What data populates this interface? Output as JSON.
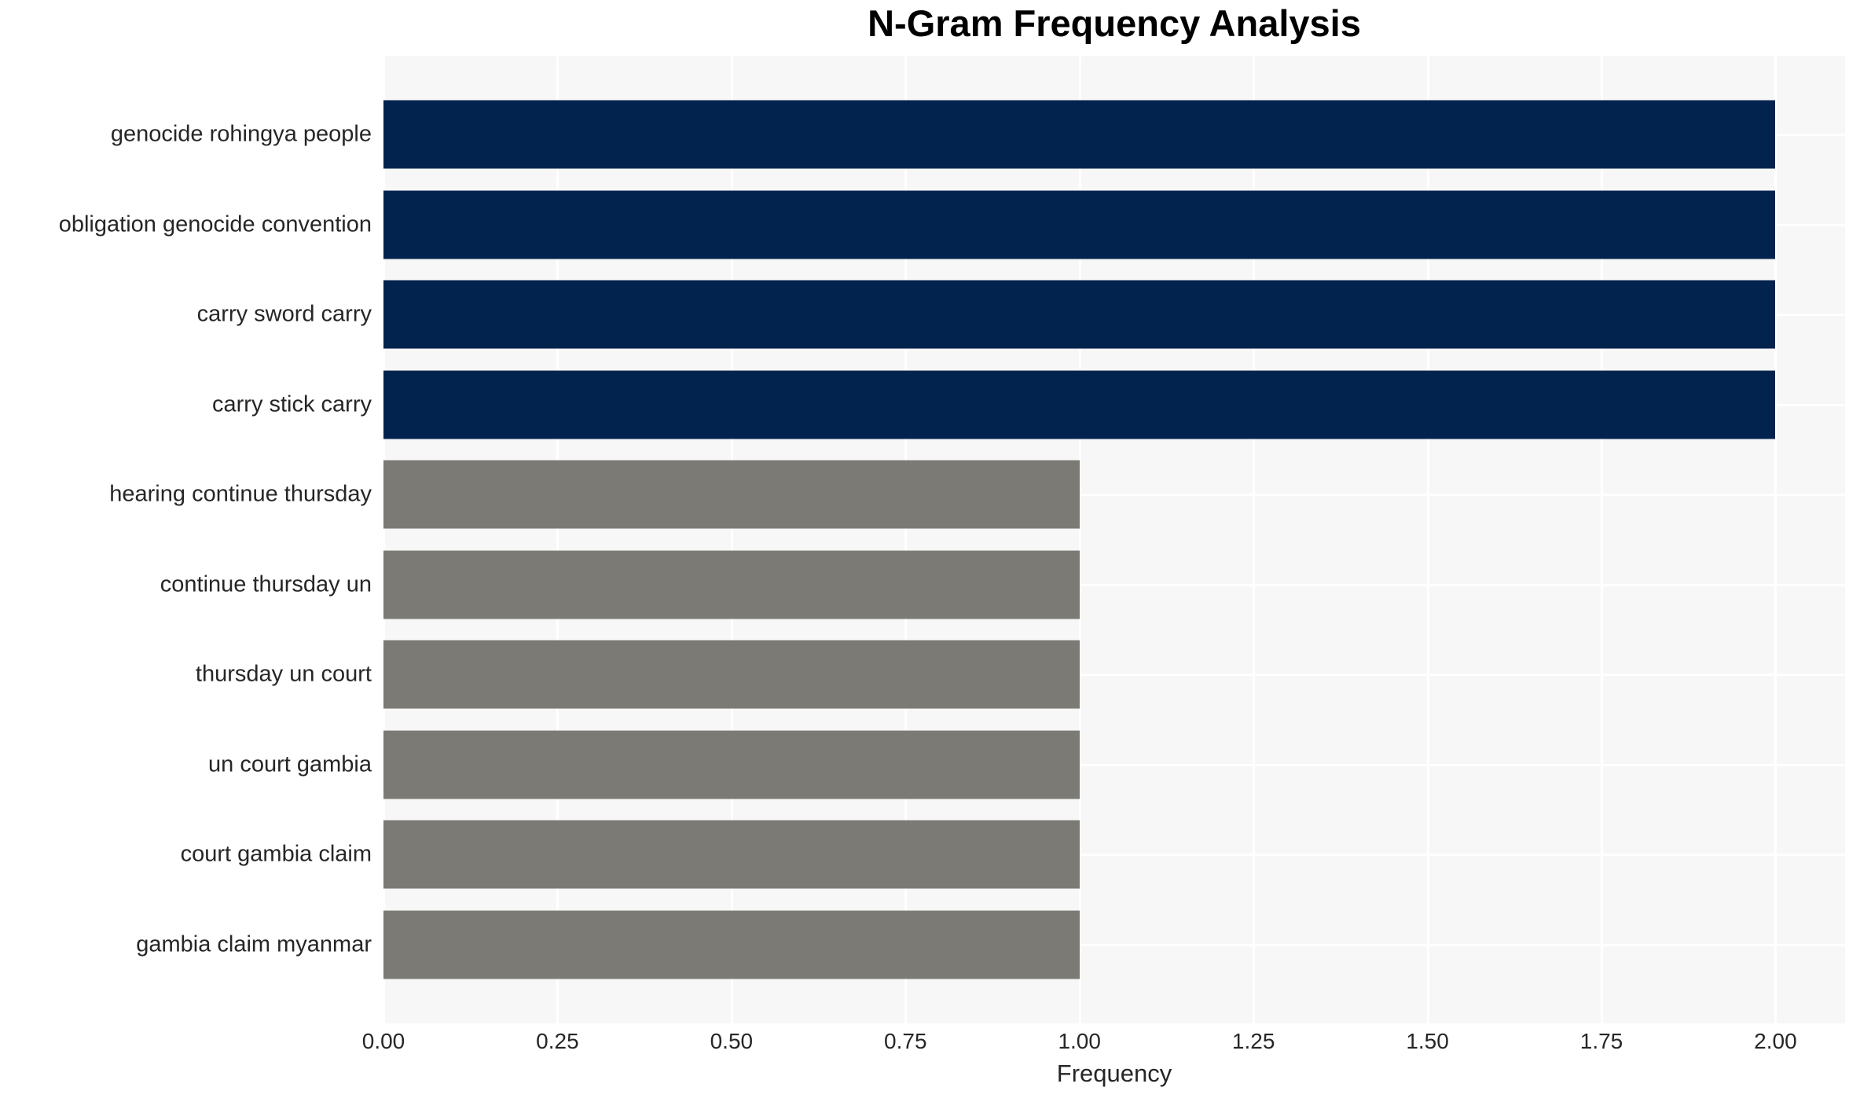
{
  "chart_data": {
    "type": "bar",
    "orientation": "horizontal",
    "title": "N-Gram Frequency Analysis",
    "xlabel": "Frequency",
    "ylabel": "",
    "categories": [
      "genocide rohingya people",
      "obligation genocide convention",
      "carry sword carry",
      "carry stick carry",
      "hearing continue thursday",
      "continue thursday un",
      "thursday un court",
      "un court gambia",
      "court gambia claim",
      "gambia claim myanmar"
    ],
    "values": [
      2,
      2,
      2,
      2,
      1,
      1,
      1,
      1,
      1,
      1
    ],
    "bar_colors": [
      "#02234D",
      "#02234D",
      "#02234D",
      "#02234D",
      "#7B7A75",
      "#7B7A75",
      "#7B7A75",
      "#7B7A75",
      "#7B7A75",
      "#7B7A75"
    ],
    "xlim": [
      0,
      2.1
    ],
    "xticks": [
      "0.00",
      "0.25",
      "0.50",
      "0.75",
      "1.00",
      "1.25",
      "1.50",
      "1.75",
      "2.00"
    ],
    "xtick_values": [
      0,
      0.25,
      0.5,
      0.75,
      1.0,
      1.25,
      1.5,
      1.75,
      2.0
    ],
    "legend": null,
    "grid": "on",
    "colors": {
      "high_freq_bar": "#02234D",
      "low_freq_bar": "#7B7A75",
      "plot_background": "#F7F7F7",
      "grid_line": "#FFFFFF",
      "tick_text": "#262626",
      "title_text": "#000000"
    }
  }
}
